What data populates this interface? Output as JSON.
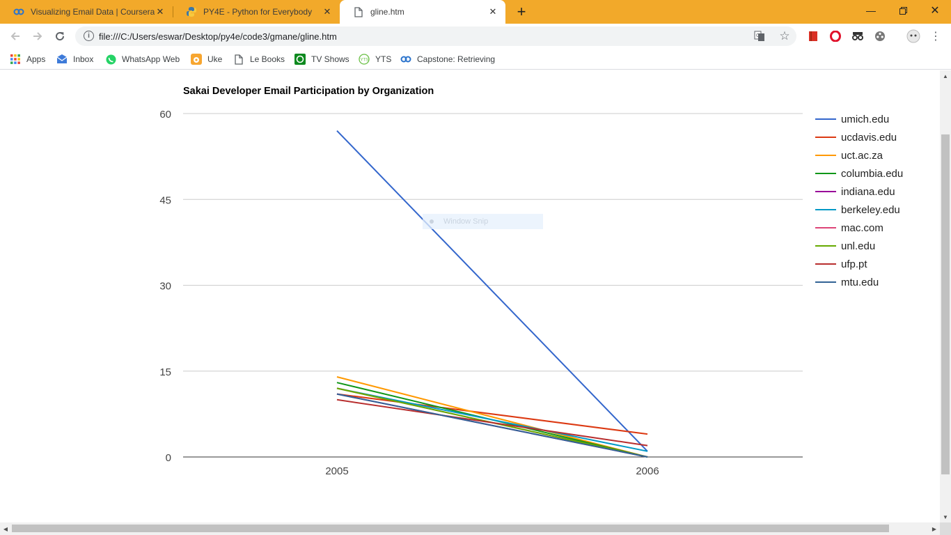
{
  "browser": {
    "tabs": [
      {
        "title": "Visualizing Email Data | Coursera",
        "icon": "coursera-icon",
        "active": false
      },
      {
        "title": "PY4E - Python for Everybody",
        "icon": "python-icon",
        "active": false
      },
      {
        "title": "gline.htm",
        "icon": "document-icon",
        "active": true
      }
    ],
    "url": "file:///C:/Users/eswar/Desktop/py4e/code3/gmane/gline.htm",
    "bookmarks": [
      {
        "label": "Apps",
        "icon": "apps-grid-icon"
      },
      {
        "label": "Inbox",
        "icon": "inbox-icon"
      },
      {
        "label": "WhatsApp Web",
        "icon": "whatsapp-icon"
      },
      {
        "label": "Uke",
        "icon": "uke-icon"
      },
      {
        "label": "Le Books",
        "icon": "document-icon"
      },
      {
        "label": "TV Shows",
        "icon": "tv-icon"
      },
      {
        "label": "YTS",
        "icon": "yts-icon"
      },
      {
        "label": "Capstone: Retrieving",
        "icon": "coursera-icon"
      }
    ]
  },
  "overlay": {
    "window_snip_label": "Window Snip"
  },
  "chart_data": {
    "type": "line",
    "title": "Sakai Developer Email Participation by Organization",
    "categories": [
      "2005",
      "2006"
    ],
    "ylim": [
      0,
      60
    ],
    "yticks": [
      0,
      15,
      30,
      45,
      60
    ],
    "grid": true,
    "legend_position": "right",
    "series": [
      {
        "name": "umich.edu",
        "color": "#3366cc",
        "values": [
          57,
          1
        ]
      },
      {
        "name": "ucdavis.edu",
        "color": "#dc3912",
        "values": [
          11,
          4
        ]
      },
      {
        "name": "uct.ac.za",
        "color": "#ff9900",
        "values": [
          14,
          0
        ]
      },
      {
        "name": "columbia.edu",
        "color": "#109618",
        "values": [
          13,
          0
        ]
      },
      {
        "name": "indiana.edu",
        "color": "#990099",
        "values": [
          11,
          0
        ]
      },
      {
        "name": "berkeley.edu",
        "color": "#0099c6",
        "values": [
          12,
          1
        ]
      },
      {
        "name": "mac.com",
        "color": "#dd4477",
        "values": [
          12,
          0
        ]
      },
      {
        "name": "unl.edu",
        "color": "#66aa00",
        "values": [
          12,
          0
        ]
      },
      {
        "name": "ufp.pt",
        "color": "#b82e2e",
        "values": [
          10,
          2
        ]
      },
      {
        "name": "mtu.edu",
        "color": "#316395",
        "values": [
          11,
          0
        ]
      }
    ]
  }
}
